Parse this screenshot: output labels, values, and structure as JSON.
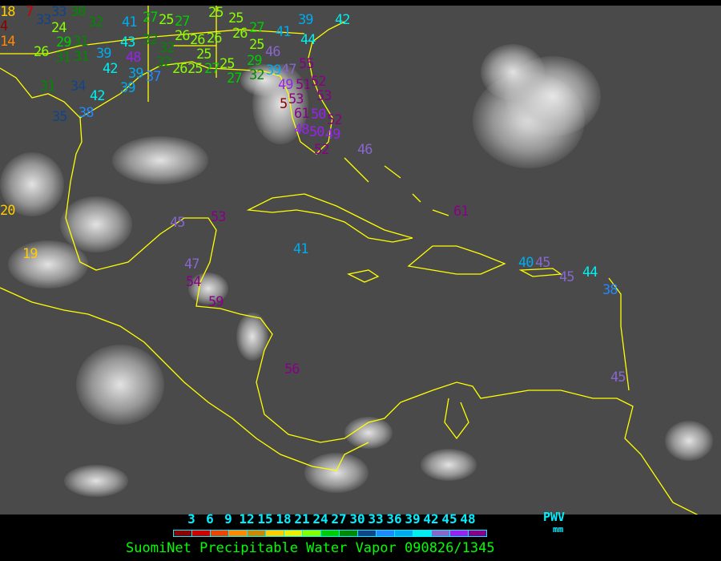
{
  "title": "SuomiNet Precipitable Water Vapor 090826/1345",
  "legend": {
    "unit_top": "PWV",
    "unit_bottom": "mm",
    "ticks": [
      "3",
      "6",
      "9",
      "12",
      "15",
      "18",
      "21",
      "24",
      "27",
      "30",
      "33",
      "36",
      "39",
      "42",
      "45",
      "48"
    ],
    "colors": [
      "#8b0000",
      "#cc0000",
      "#ee4400",
      "#ff8800",
      "#cc8800",
      "#ffcc00",
      "#eeee00",
      "#88ff00",
      "#00cc00",
      "#008800",
      "#114488",
      "#2288ff",
      "#00aaee",
      "#00eeee",
      "#8866cc",
      "#9922ee",
      "#880088"
    ]
  },
  "coastline_color": "#ffff00",
  "stations": [
    "18",
    "4",
    "14",
    "7",
    "33",
    "33",
    "30",
    "24",
    "29",
    "31",
    "26",
    "31",
    "31",
    "39",
    "32",
    "41",
    "27",
    "25",
    "27",
    "43",
    "48",
    "32",
    "32",
    "32",
    "26",
    "26",
    "42",
    "39",
    "37",
    "39",
    "42",
    "34",
    "31",
    "35",
    "38",
    "25",
    "25",
    "26",
    "27",
    "26",
    "25",
    "29",
    "25",
    "26",
    "25",
    "27",
    "25",
    "27",
    "32",
    "39",
    "41",
    "39",
    "42",
    "44",
    "46",
    "47",
    "55",
    "49",
    "51",
    "52",
    "53",
    "53",
    "5",
    "61",
    "50",
    "52",
    "48",
    "50",
    "49",
    "52",
    "46",
    "61",
    "45",
    "53",
    "20",
    "19",
    "41",
    "40",
    "45",
    "45",
    "44",
    "38",
    "45",
    "47",
    "54",
    "59",
    "56"
  ]
}
